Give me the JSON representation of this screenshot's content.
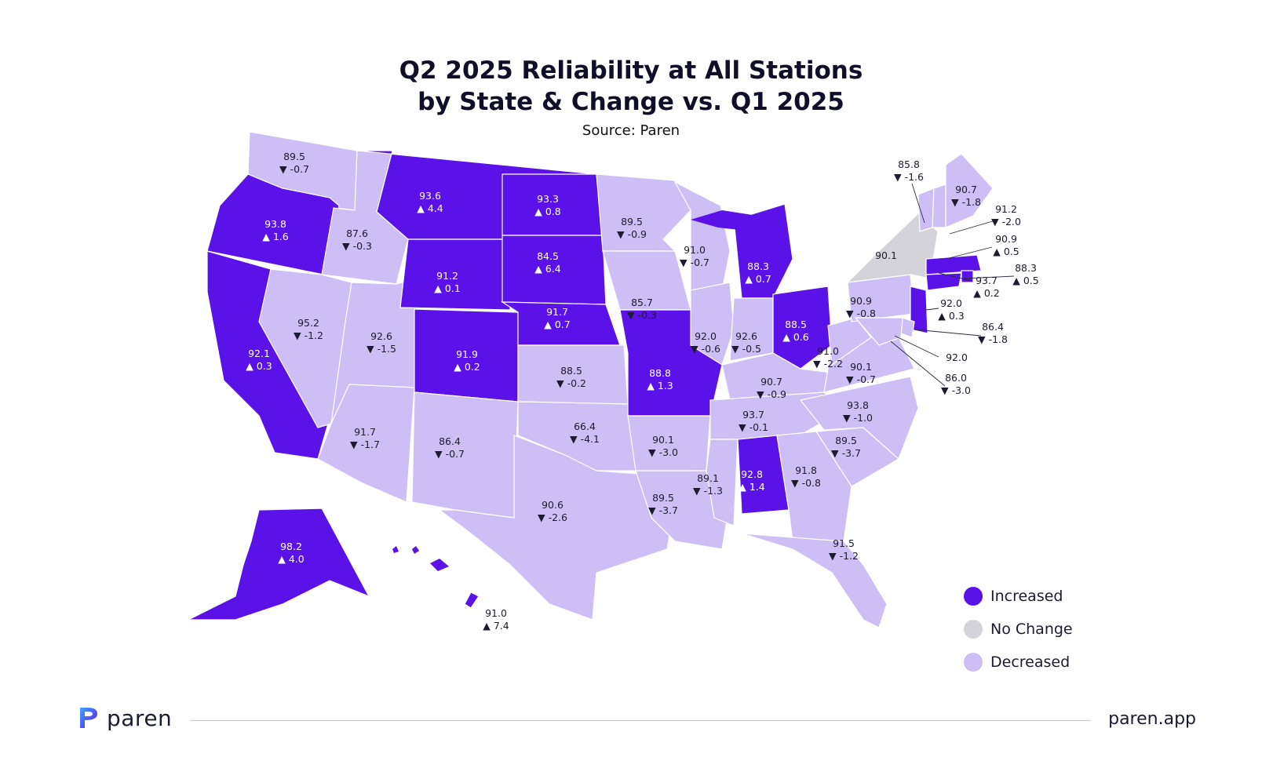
{
  "title_line1": "Q2 2025 Reliability at All Stations",
  "title_line2": "by State & Change vs. Q1 2025",
  "subtitle": "Source: Paren",
  "colors": {
    "increased": "#5b12e8",
    "no_change": "#d3d3d9",
    "decreased": "#cdbef5",
    "border": "#ffffff"
  },
  "legend": [
    {
      "label": "Increased",
      "status": "increased"
    },
    {
      "label": "No Change",
      "status": "no_change"
    },
    {
      "label": "Decreased",
      "status": "decreased"
    }
  ],
  "states": [
    {
      "state": "WA",
      "value": "89.5",
      "change": -0.7,
      "status": "decreased"
    },
    {
      "state": "OR",
      "value": "93.8",
      "change": 1.6,
      "status": "increased"
    },
    {
      "state": "CA",
      "value": "92.1",
      "change": 0.3,
      "status": "increased"
    },
    {
      "state": "ID",
      "value": "87.6",
      "change": -0.3,
      "status": "decreased"
    },
    {
      "state": "NV",
      "value": "95.2",
      "change": -1.2,
      "status": "decreased"
    },
    {
      "state": "UT",
      "value": "92.6",
      "change": -1.5,
      "status": "decreased"
    },
    {
      "state": "AZ",
      "value": "91.7",
      "change": -1.7,
      "status": "decreased"
    },
    {
      "state": "MT",
      "value": "93.6",
      "change": 4.4,
      "status": "increased"
    },
    {
      "state": "WY",
      "value": "91.2",
      "change": 0.1,
      "status": "increased"
    },
    {
      "state": "CO",
      "value": "91.9",
      "change": 0.2,
      "status": "increased"
    },
    {
      "state": "NM",
      "value": "86.4",
      "change": -0.7,
      "status": "decreased"
    },
    {
      "state": "ND",
      "value": "93.3",
      "change": 0.8,
      "status": "increased"
    },
    {
      "state": "SD",
      "value": "84.5",
      "change": 6.4,
      "status": "increased"
    },
    {
      "state": "NE",
      "value": "91.7",
      "change": 0.7,
      "status": "increased"
    },
    {
      "state": "KS",
      "value": "88.5",
      "change": -0.2,
      "status": "decreased"
    },
    {
      "state": "OK",
      "value": "66.4",
      "change": -4.1,
      "status": "decreased"
    },
    {
      "state": "TX",
      "value": "90.6",
      "change": -2.6,
      "status": "decreased"
    },
    {
      "state": "MN",
      "value": "89.5",
      "change": -0.9,
      "status": "decreased"
    },
    {
      "state": "IA",
      "value": "85.7",
      "change": -0.3,
      "status": "decreased"
    },
    {
      "state": "MO",
      "value": "88.8",
      "change": 1.3,
      "status": "increased"
    },
    {
      "state": "AR",
      "value": "90.1",
      "change": -3.0,
      "status": "decreased"
    },
    {
      "state": "LA",
      "value": "89.5",
      "change": -3.7,
      "status": "decreased"
    },
    {
      "state": "WI",
      "value": "91.0",
      "change": -0.7,
      "status": "decreased"
    },
    {
      "state": "IL",
      "value": "92.0",
      "change": -0.6,
      "status": "decreased"
    },
    {
      "state": "MI",
      "value": "88.3",
      "change": 0.7,
      "status": "increased"
    },
    {
      "state": "IN",
      "value": "92.6",
      "change": -0.5,
      "status": "decreased"
    },
    {
      "state": "OH",
      "value": "88.5",
      "change": 0.6,
      "status": "increased"
    },
    {
      "state": "KY",
      "value": "90.7",
      "change": -0.9,
      "status": "decreased"
    },
    {
      "state": "TN",
      "value": "93.7",
      "change": -0.1,
      "status": "decreased"
    },
    {
      "state": "MS",
      "value": "89.1",
      "change": -1.3,
      "status": "decreased"
    },
    {
      "state": "AL",
      "value": "92.8",
      "change": 1.4,
      "status": "increased"
    },
    {
      "state": "GA",
      "value": "91.8",
      "change": -0.8,
      "status": "decreased"
    },
    {
      "state": "FL",
      "value": "91.5",
      "change": -1.2,
      "status": "decreased"
    },
    {
      "state": "SC",
      "value": "89.5",
      "change": -3.7,
      "status": "decreased"
    },
    {
      "state": "NC",
      "value": "93.8",
      "change": -1.0,
      "status": "decreased"
    },
    {
      "state": "VA",
      "value": "90.1",
      "change": -0.7,
      "status": "decreased"
    },
    {
      "state": "WV",
      "value": "91.0",
      "change": -2.2,
      "status": "decreased"
    },
    {
      "state": "PA",
      "value": "90.9",
      "change": -0.8,
      "status": "decreased"
    },
    {
      "state": "NY",
      "value": "90.1",
      "change": null,
      "status": "no_change"
    },
    {
      "state": "NJ",
      "value": "92.0",
      "change": 0.3,
      "status": "increased"
    },
    {
      "state": "DE",
      "value": "86.4",
      "change": -1.8,
      "status": "decreased"
    },
    {
      "state": "DC",
      "value": "92.0",
      "change": null,
      "status": "no_change"
    },
    {
      "state": "MD",
      "value": "86.0",
      "change": -3.0,
      "status": "decreased"
    },
    {
      "state": "VT",
      "value": "85.8",
      "change": -1.6,
      "status": "decreased"
    },
    {
      "state": "NH",
      "value": "91.2",
      "change": -2.0,
      "status": "decreased"
    },
    {
      "state": "ME",
      "value": "90.7",
      "change": -1.8,
      "status": "decreased"
    },
    {
      "state": "MA",
      "value": "90.9",
      "change": 0.5,
      "status": "increased"
    },
    {
      "state": "RI",
      "value": "88.3",
      "change": 0.5,
      "status": "increased"
    },
    {
      "state": "CT",
      "value": "93.7",
      "change": 0.2,
      "status": "increased"
    },
    {
      "state": "AK",
      "value": "98.2",
      "change": 4.0,
      "status": "increased"
    },
    {
      "state": "HI",
      "value": "91.0",
      "change": 7.4,
      "status": "increased"
    }
  ],
  "brand": {
    "name": "paren",
    "site": "paren.app"
  }
}
